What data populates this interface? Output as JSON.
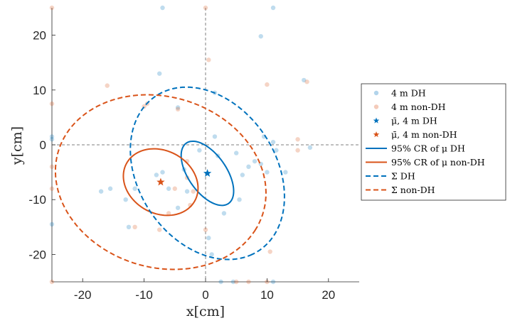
{
  "chart_data": {
    "type": "scatter",
    "xlabel": "x[cm]",
    "ylabel": "y[cm]",
    "xlim": [
      -25,
      25
    ],
    "ylim": [
      -25,
      25
    ],
    "xticks": [
      -20,
      -10,
      0,
      10,
      20
    ],
    "yticks": [
      -20,
      -10,
      0,
      10,
      20
    ],
    "x_tick_labels": [
      "-20",
      "-10",
      "0",
      "10",
      "20"
    ],
    "y_tick_labels": [
      "-20",
      "-10",
      "0",
      "10",
      "20"
    ],
    "grid": false,
    "crosshair": {
      "x": 0,
      "y": 0
    },
    "legend_position": "east-outside",
    "colors": {
      "dh": "#0072BD",
      "non_dh": "#D95319"
    },
    "series": [
      {
        "name": "4 m DH",
        "kind": "points",
        "color": "#0072BD",
        "points": [
          [
            -7,
            25
          ],
          [
            11,
            25
          ],
          [
            9,
            19.8
          ],
          [
            -25,
            1.5
          ],
          [
            -25,
            1
          ],
          [
            -7.5,
            13
          ],
          [
            1.5,
            9.5
          ],
          [
            -4.5,
            6.8
          ],
          [
            1.5,
            1.5
          ],
          [
            -1,
            -1
          ],
          [
            2,
            -2
          ],
          [
            5,
            -1.5
          ],
          [
            8,
            -3
          ],
          [
            9.5,
            1.5
          ],
          [
            11,
            0.5
          ],
          [
            11.5,
            -1
          ],
          [
            13,
            -5
          ],
          [
            17,
            -0.5
          ],
          [
            16,
            11.8
          ],
          [
            9,
            -3.5
          ],
          [
            6,
            -5.5
          ],
          [
            7,
            -4
          ],
          [
            10,
            -5
          ],
          [
            5.5,
            -10
          ],
          [
            3,
            -12.5
          ],
          [
            -3.5,
            -4.5
          ],
          [
            -8,
            -5.5
          ],
          [
            -7,
            -5
          ],
          [
            -6,
            -8
          ],
          [
            -4.5,
            -11.5
          ],
          [
            -3,
            -8.5
          ],
          [
            -11.5,
            -8
          ],
          [
            -12.5,
            -15
          ],
          [
            -15.5,
            -8
          ],
          [
            -17,
            -8.5
          ],
          [
            -13,
            -10
          ],
          [
            0.5,
            -17
          ],
          [
            1,
            -20
          ],
          [
            2.5,
            -25
          ],
          [
            4.5,
            -25
          ],
          [
            11,
            -25
          ],
          [
            -25,
            -14.5
          ]
        ]
      },
      {
        "name": "4 m non-DH",
        "kind": "points",
        "color": "#D95319",
        "points": [
          [
            -25,
            25
          ],
          [
            0,
            25
          ],
          [
            0.5,
            15.5
          ],
          [
            -16,
            10.8
          ],
          [
            -25,
            7.5
          ],
          [
            -10,
            7
          ],
          [
            -9.5,
            7.5
          ],
          [
            -4.5,
            6.5
          ],
          [
            -3,
            -3
          ],
          [
            -3,
            -6
          ],
          [
            -2,
            -8.5
          ],
          [
            -5,
            -8
          ],
          [
            -2.5,
            -11
          ],
          [
            -6,
            -12.5
          ],
          [
            -7.5,
            -15.5
          ],
          [
            -11.5,
            -15
          ],
          [
            -25,
            -4
          ],
          [
            -25,
            -8
          ],
          [
            -25,
            -25
          ],
          [
            5,
            -25
          ],
          [
            7,
            -25
          ],
          [
            10,
            -25
          ],
          [
            0,
            -15.5
          ],
          [
            10.5,
            -19.5
          ],
          [
            15,
            -1
          ],
          [
            15,
            1
          ],
          [
            10,
            11
          ],
          [
            16.5,
            11.5
          ]
        ]
      },
      {
        "name": "μ̄, 4 m DH",
        "kind": "mean",
        "color": "#0072BD",
        "points": [
          [
            0.3,
            -5.2
          ]
        ]
      },
      {
        "name": "μ̄, 4 m non-DH",
        "kind": "mean",
        "color": "#D95319",
        "points": [
          [
            -7.3,
            -6.8
          ]
        ]
      },
      {
        "name": "95% CR of μ DH",
        "kind": "solid-ellipse",
        "color": "#0072BD",
        "ellipse": {
          "cx": 0.3,
          "cy": -5.2,
          "rx": 6.5,
          "ry": 3.2,
          "angle_deg": -60
        }
      },
      {
        "name": "95% CR of μ non-DH",
        "kind": "solid-ellipse",
        "color": "#D95319",
        "ellipse": {
          "cx": -7.3,
          "cy": -6.8,
          "rx": 6.6,
          "ry": 5.5,
          "angle_deg": -45
        }
      },
      {
        "name": "Σ DH",
        "kind": "dashed-ellipse",
        "color": "#0072BD",
        "ellipse": {
          "cx": 0.3,
          "cy": -5.2,
          "rx": 16.5,
          "ry": 11.5,
          "angle_deg": -65
        }
      },
      {
        "name": "Σ non-DH",
        "kind": "dashed-ellipse",
        "color": "#D95319",
        "ellipse": {
          "cx": -7.3,
          "cy": -6.8,
          "rx": 17.7,
          "ry": 15.3,
          "angle_deg": -30
        }
      }
    ],
    "legend": [
      {
        "label": "4 m DH",
        "marker": "dot",
        "color": "#0072BD"
      },
      {
        "label": "4 m non-DH",
        "marker": "dot",
        "color": "#D95319"
      },
      {
        "label": "μ̄, 4 m DH",
        "marker": "star",
        "color": "#0072BD"
      },
      {
        "label": "μ̄, 4 m non-DH",
        "marker": "star",
        "color": "#D95319"
      },
      {
        "label": "95% CR of μ DH",
        "marker": "solid",
        "color": "#0072BD"
      },
      {
        "label": "95% CR of μ non-DH",
        "marker": "solid",
        "color": "#D95319"
      },
      {
        "label": "Σ DH",
        "marker": "dashed",
        "color": "#0072BD"
      },
      {
        "label": "Σ non-DH",
        "marker": "dashed",
        "color": "#D95319"
      }
    ]
  }
}
